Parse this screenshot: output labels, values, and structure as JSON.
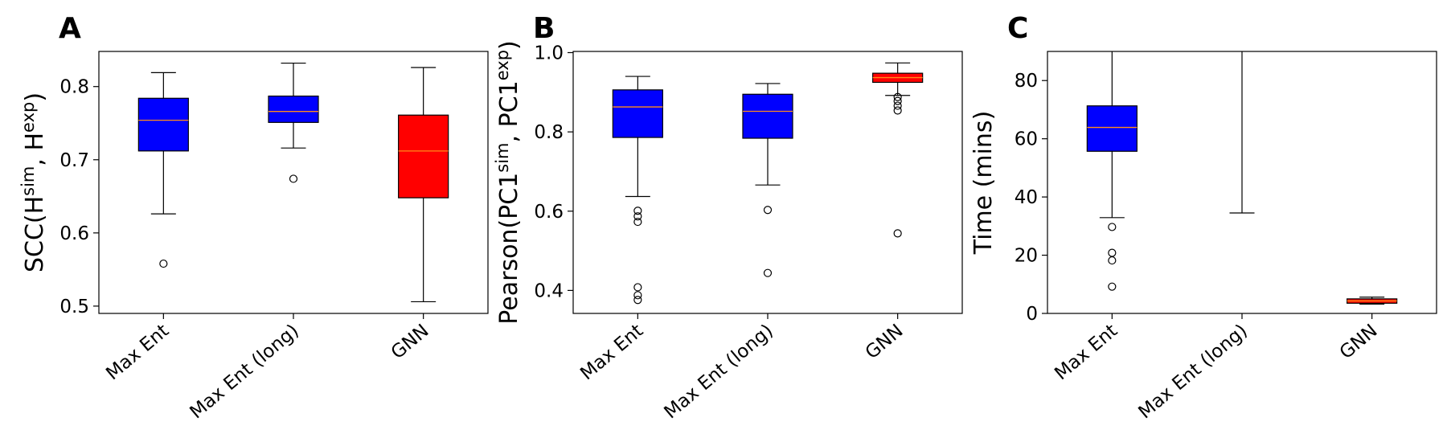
{
  "chart_data": [
    {
      "panel_label": "A",
      "type": "box",
      "ylabel_main": "SCC(H",
      "ylabel_sup1": "sim",
      "ylabel_mid": ", H",
      "ylabel_sup2": "exp",
      "ylabel_end": ")",
      "ylim": [
        0.49,
        0.848
      ],
      "yticks": [
        0.5,
        0.6,
        0.7,
        0.8
      ],
      "ytick_labels": [
        "0.5",
        "0.6",
        "0.7",
        "0.8"
      ],
      "categories": [
        "Max Ent",
        "Max Ent (long)",
        "GNN"
      ],
      "boxes": [
        {
          "category": "Max Ent",
          "color": "#0000ff",
          "whislo": 0.626,
          "q1": 0.712,
          "median": 0.754,
          "q3": 0.784,
          "whishi": 0.819,
          "fliers": [
            0.558
          ]
        },
        {
          "category": "Max Ent (long)",
          "color": "#0000ff",
          "whislo": 0.716,
          "q1": 0.751,
          "median": 0.766,
          "q3": 0.787,
          "whishi": 0.832,
          "fliers": [
            0.674
          ]
        },
        {
          "category": "GNN",
          "color": "#ff0000",
          "whislo": 0.506,
          "q1": 0.648,
          "median": 0.712,
          "q3": 0.761,
          "whishi": 0.826,
          "fliers": []
        }
      ]
    },
    {
      "panel_label": "B",
      "type": "box",
      "ylabel_main": "Pearson(PC1",
      "ylabel_sup1": "sim",
      "ylabel_mid": ", PC1",
      "ylabel_sup2": "exp",
      "ylabel_end": ")",
      "ylim": [
        0.342,
        1.003
      ],
      "yticks": [
        0.4,
        0.6,
        0.8,
        1.0
      ],
      "ytick_labels": [
        "0.4",
        "0.6",
        "0.8",
        "1.0"
      ],
      "categories": [
        "Max Ent",
        "Max Ent (long)",
        "GNN"
      ],
      "boxes": [
        {
          "category": "Max Ent",
          "color": "#0000ff",
          "whislo": 0.637,
          "q1": 0.786,
          "median": 0.863,
          "q3": 0.906,
          "whishi": 0.94,
          "fliers": [
            0.601,
            0.587,
            0.573,
            0.408,
            0.388,
            0.376
          ]
        },
        {
          "category": "Max Ent (long)",
          "color": "#0000ff",
          "whislo": 0.666,
          "q1": 0.784,
          "median": 0.852,
          "q3": 0.895,
          "whishi": 0.922,
          "fliers": [
            0.603,
            0.444
          ]
        },
        {
          "category": "GNN",
          "color": "#ff0000",
          "whislo": 0.892,
          "q1": 0.925,
          "median": 0.937,
          "q3": 0.948,
          "whishi": 0.974,
          "fliers": [
            0.888,
            0.878,
            0.866,
            0.854,
            0.544
          ]
        }
      ]
    },
    {
      "panel_label": "C",
      "type": "box",
      "ylabel_main": "Time (mins)",
      "ylabel_sup1": "",
      "ylabel_mid": "",
      "ylabel_sup2": "",
      "ylabel_end": "",
      "ylim": [
        0,
        90
      ],
      "yticks": [
        0,
        20,
        40,
        60,
        80
      ],
      "ytick_labels": [
        "0",
        "20",
        "40",
        "60",
        "80"
      ],
      "categories": [
        "Max Ent",
        "Max Ent (long)",
        "GNN"
      ],
      "boxes": [
        {
          "category": "Max Ent",
          "color": "#0000ff",
          "whislo": 32.9,
          "q1": 55.7,
          "median": 63.9,
          "q3": 71.3,
          "whishi": 90,
          "fliers": [
            29.7,
            20.8,
            18.2,
            9.2
          ]
        },
        {
          "category": "Max Ent (long)",
          "color": "#0000ff",
          "whislo": 34.5,
          "q1": null,
          "median": null,
          "q3": null,
          "whishi": 90,
          "fliers": []
        },
        {
          "category": "GNN",
          "color": "#ff0000",
          "whislo": 3.2,
          "q1": 3.5,
          "median": 4.3,
          "q3": 5.0,
          "whishi": 5.6,
          "fliers": []
        }
      ]
    }
  ]
}
